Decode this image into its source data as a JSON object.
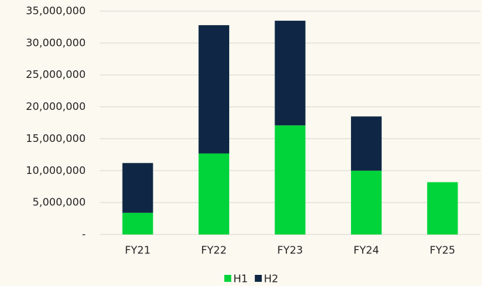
{
  "chart_data": {
    "type": "stacked_bar",
    "categories": [
      "FY21",
      "FY22",
      "FY23",
      "FY24",
      "FY25"
    ],
    "series": [
      {
        "name": "H1",
        "color": "#00d43a",
        "values": [
          3400000,
          12700000,
          17100000,
          10000000,
          8200000
        ]
      },
      {
        "name": "H2",
        "color": "#0f2744",
        "values": [
          7800000,
          20100000,
          16400000,
          8500000,
          null
        ]
      }
    ],
    "ylim": [
      0,
      35000000
    ],
    "yticks": [
      {
        "value": 0,
        "label": "-"
      },
      {
        "value": 5000000,
        "label": "5,000,000"
      },
      {
        "value": 10000000,
        "label": "10,000,000"
      },
      {
        "value": 15000000,
        "label": "15,000,000"
      },
      {
        "value": 20000000,
        "label": "20,000,000"
      },
      {
        "value": 25000000,
        "label": "25,000,000"
      },
      {
        "value": 30000000,
        "label": "30,000,000"
      },
      {
        "value": 35000000,
        "label": "35,000,000"
      }
    ],
    "grid": true,
    "legend": "bottom"
  }
}
